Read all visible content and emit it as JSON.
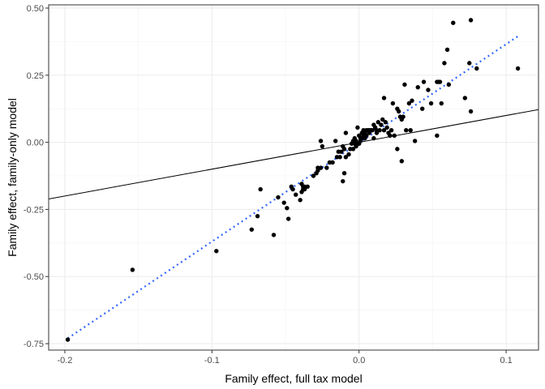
{
  "chart_data": {
    "type": "scatter",
    "xlabel": "Family effect, full tax model",
    "ylabel": "Family effect, family-only model",
    "xlim": [
      -0.211,
      0.122
    ],
    "ylim": [
      -0.774,
      0.512
    ],
    "x_ticks": [
      -0.2,
      -0.1,
      0.0,
      0.1
    ],
    "x_tick_labels": [
      "-0.2",
      "-0.1",
      "0.0",
      "0.1"
    ],
    "y_ticks": [
      0.5,
      0.25,
      0.0,
      -0.25,
      -0.5,
      -0.75
    ],
    "y_tick_labels": [
      "0.50",
      "0.25",
      "0.00",
      "-0.25",
      "-0.50",
      "-0.75"
    ],
    "grid": true,
    "panel_border": true,
    "identity_line": {
      "style": "solid",
      "color": "#000000",
      "slope": 1,
      "intercept": 0
    },
    "fit_line": {
      "style": "dotted",
      "color": "#3366ff",
      "x": [
        -0.198,
        0.108
      ],
      "y": [
        -0.73,
        0.395
      ]
    },
    "points": {
      "color": "#000000",
      "x": [
        -0.198,
        -0.154,
        -0.097,
        -0.073,
        -0.069,
        -0.067,
        -0.058,
        -0.055,
        -0.051,
        -0.049,
        -0.048,
        -0.046,
        -0.045,
        -0.043,
        -0.04,
        -0.039,
        -0.039,
        -0.038,
        -0.038,
        -0.037,
        -0.037,
        -0.035,
        -0.031,
        -0.029,
        -0.028,
        -0.028,
        -0.026,
        -0.026,
        -0.025,
        -0.022,
        -0.02,
        -0.018,
        -0.016,
        -0.015,
        -0.014,
        -0.013,
        -0.012,
        -0.011,
        -0.011,
        -0.01,
        -0.01,
        -0.009,
        -0.009,
        -0.007,
        -0.006,
        -0.005,
        -0.004,
        -0.004,
        -0.003,
        -0.003,
        -0.002,
        -0.002,
        -0.001,
        -0.001,
        0.0,
        0.0,
        0.001,
        0.001,
        0.002,
        0.002,
        0.003,
        0.003,
        0.004,
        0.004,
        0.005,
        0.005,
        0.006,
        0.007,
        0.007,
        0.008,
        0.009,
        0.01,
        0.01,
        0.011,
        0.012,
        0.012,
        0.013,
        0.014,
        0.015,
        0.016,
        0.017,
        0.017,
        0.018,
        0.019,
        0.02,
        0.021,
        0.022,
        0.023,
        0.024,
        0.026,
        0.026,
        0.027,
        0.028,
        0.029,
        0.029,
        0.03,
        0.031,
        0.032,
        0.034,
        0.035,
        0.036,
        0.038,
        0.04,
        0.043,
        0.044,
        0.047,
        0.049,
        0.053,
        0.053,
        0.054,
        0.055,
        0.056,
        0.058,
        0.06,
        0.061,
        0.064,
        0.072,
        0.075,
        0.076,
        0.076,
        0.08,
        0.108
      ],
      "y": [
        -0.735,
        -0.475,
        -0.405,
        -0.325,
        -0.275,
        -0.175,
        -0.345,
        -0.205,
        -0.225,
        -0.245,
        -0.285,
        -0.165,
        -0.175,
        -0.195,
        -0.215,
        -0.185,
        -0.155,
        -0.165,
        -0.175,
        -0.175,
        -0.165,
        -0.165,
        -0.125,
        -0.115,
        -0.105,
        -0.095,
        -0.095,
        0.005,
        -0.015,
        -0.095,
        -0.075,
        -0.075,
        0.005,
        -0.055,
        -0.035,
        -0.055,
        -0.035,
        -0.015,
        -0.145,
        -0.115,
        -0.025,
        -0.055,
        0.035,
        -0.045,
        -0.025,
        -0.005,
        -0.025,
        0.005,
        -0.005,
        0.015,
        -0.015,
        0.005,
        -0.005,
        0.055,
        0.025,
        -0.005,
        0.015,
        0.005,
        0.035,
        0.015,
        0.045,
        0.025,
        0.015,
        0.035,
        0.045,
        0.025,
        0.045,
        0.045,
        0.035,
        0.045,
        0.045,
        0.065,
        0.015,
        0.055,
        0.045,
        0.035,
        0.075,
        0.045,
        0.065,
        0.085,
        0.045,
        0.165,
        0.075,
        0.055,
        0.035,
        0.025,
        0.045,
        0.145,
        0.025,
        0.125,
        -0.025,
        0.115,
        0.095,
        0.085,
        -0.07,
        0.095,
        0.215,
        0.045,
        0.145,
        0.045,
        0.155,
        0.005,
        0.205,
        0.125,
        0.225,
        0.195,
        0.145,
        0.225,
        0.025,
        0.225,
        0.225,
        0.145,
        0.295,
        0.345,
        0.215,
        0.445,
        0.165,
        0.295,
        0.115,
        0.455,
        0.275,
        0.275
      ]
    }
  }
}
